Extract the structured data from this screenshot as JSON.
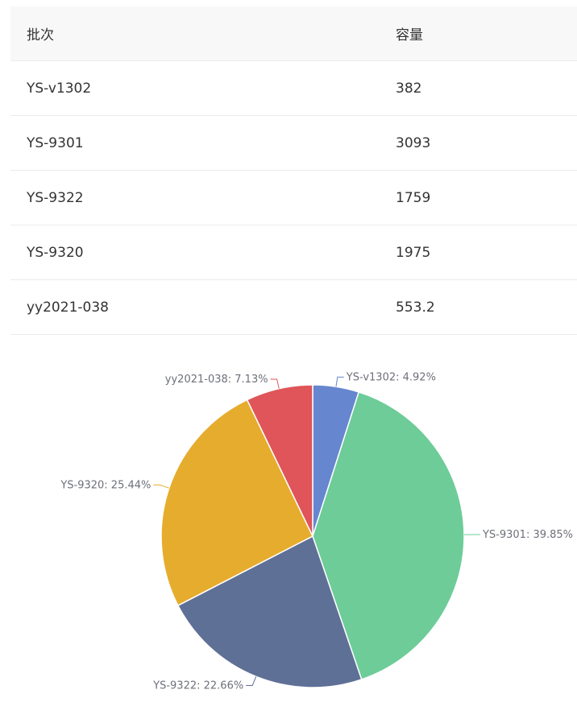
{
  "table": {
    "headers": {
      "batch": "批次",
      "capacity": "容量"
    },
    "rows": [
      {
        "batch": "YS-v1302",
        "capacity": "382"
      },
      {
        "batch": "YS-9301",
        "capacity": "3093"
      },
      {
        "batch": "YS-9322",
        "capacity": "1759"
      },
      {
        "batch": "YS-9320",
        "capacity": "1975"
      },
      {
        "batch": "yy2021-038",
        "capacity": "553.2"
      }
    ]
  },
  "chart_data": {
    "type": "pie",
    "slices": [
      {
        "name": "YS-v1302",
        "value": 382,
        "label": "YS-v1302: 4.92%",
        "color": "#6686cf"
      },
      {
        "name": "YS-9301",
        "value": 3093,
        "label": "YS-9301: 39.85%",
        "color": "#6dcc98"
      },
      {
        "name": "YS-9322",
        "value": 1759,
        "label": "YS-9322: 22.66%",
        "color": "#5f7097"
      },
      {
        "name": "YS-9320",
        "value": 1975,
        "label": "YS-9320: 25.44%",
        "color": "#e6ac2d"
      },
      {
        "name": "yy2021-038",
        "value": 553.2,
        "label": "yy2021-038: 7.13%",
        "color": "#df5559"
      }
    ]
  }
}
